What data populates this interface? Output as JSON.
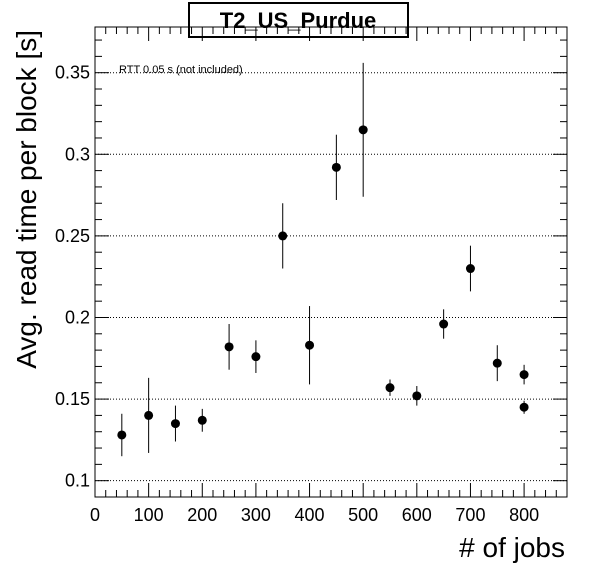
{
  "chart_data": {
    "type": "scatter",
    "title": "T2_US_Purdue",
    "xlabel": "# of jobs",
    "ylabel": "Avg. read time per block [s]",
    "annotation": "RTT 0.05 s (not included)",
    "xlim": [
      0,
      880
    ],
    "ylim": [
      0.09,
      0.378
    ],
    "xticks": [
      0,
      100,
      200,
      300,
      400,
      500,
      600,
      700,
      800
    ],
    "yticks": [
      0.1,
      0.15,
      0.2,
      0.25,
      0.3,
      0.35
    ],
    "xtick_labels": [
      "0",
      "100",
      "200",
      "300",
      "400",
      "500",
      "600",
      "700",
      "800"
    ],
    "ytick_labels": [
      "0.1",
      "0.15",
      "0.2",
      "0.25",
      "0.3",
      "0.35"
    ],
    "grid": "horizontal dotted",
    "points": [
      {
        "x": 50,
        "y": 0.128,
        "err": 0.013
      },
      {
        "x": 100,
        "y": 0.14,
        "err": 0.023
      },
      {
        "x": 150,
        "y": 0.135,
        "err": 0.011
      },
      {
        "x": 200,
        "y": 0.137,
        "err": 0.007
      },
      {
        "x": 250,
        "y": 0.182,
        "err": 0.014
      },
      {
        "x": 300,
        "y": 0.176,
        "err": 0.01
      },
      {
        "x": 350,
        "y": 0.25,
        "err": 0.02
      },
      {
        "x": 400,
        "y": 0.183,
        "err": 0.024
      },
      {
        "x": 450,
        "y": 0.292,
        "err": 0.02
      },
      {
        "x": 500,
        "y": 0.315,
        "err": 0.041
      },
      {
        "x": 550,
        "y": 0.157,
        "err": 0.005
      },
      {
        "x": 600,
        "y": 0.152,
        "err": 0.006
      },
      {
        "x": 650,
        "y": 0.196,
        "err": 0.009
      },
      {
        "x": 700,
        "y": 0.23,
        "err": 0.014
      },
      {
        "x": 750,
        "y": 0.172,
        "err": 0.011
      },
      {
        "x": 800,
        "y": 0.165,
        "err": 0.006
      },
      {
        "x": 800,
        "y": 0.145,
        "err": 0.004
      }
    ]
  }
}
